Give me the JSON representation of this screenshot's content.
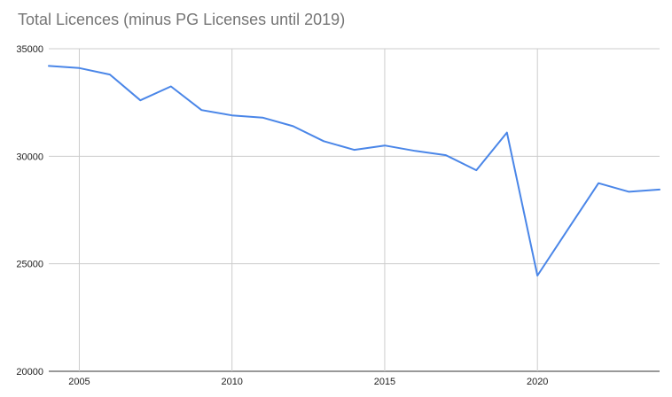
{
  "chart_data": {
    "type": "line",
    "title": "Total Licences (minus PG Licenses until 2019)",
    "xlabel": "",
    "ylabel": "",
    "xlim": [
      2004,
      2024
    ],
    "ylim": [
      20000,
      35000
    ],
    "x_ticks": [
      2005,
      2010,
      2015,
      2020
    ],
    "y_ticks": [
      20000,
      25000,
      30000,
      35000
    ],
    "x_tick_labels": [
      "2005",
      "2010",
      "2015",
      "2020"
    ],
    "y_tick_labels": [
      "20000",
      "25000",
      "30000",
      "35000"
    ],
    "grid": true,
    "legend": "none",
    "series": [
      {
        "color": "#4a86e8",
        "x": [
          2004,
          2005,
          2006,
          2007,
          2008,
          2009,
          2010,
          2011,
          2012,
          2013,
          2014,
          2015,
          2016,
          2017,
          2018,
          2019,
          2020,
          2021,
          2022,
          2023,
          2024
        ],
        "values": [
          34200,
          34100,
          33800,
          32600,
          33250,
          32150,
          31900,
          31800,
          31400,
          30700,
          30300,
          30500,
          30250,
          30050,
          29350,
          31100,
          24450,
          26600,
          28750,
          28350,
          28450
        ]
      }
    ],
    "colors": {
      "gridline": "#cccccc",
      "baseline": "#333333",
      "title": "#757575",
      "tick_label": "#222222"
    }
  }
}
